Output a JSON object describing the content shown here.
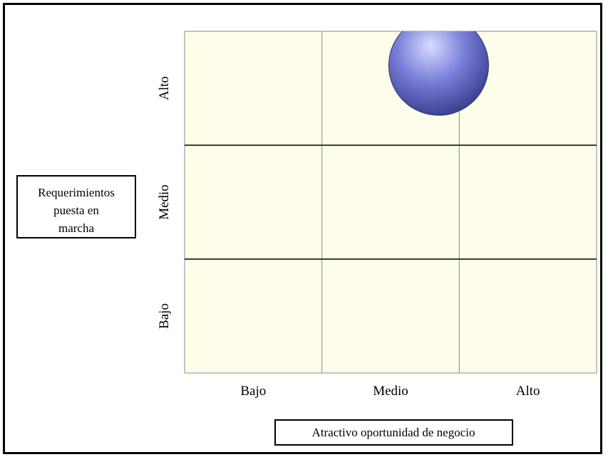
{
  "chart_data": {
    "type": "scatter",
    "x_categories": [
      "Bajo",
      "Medio",
      "Alto"
    ],
    "y_categories": [
      "Bajo",
      "Medio",
      "Alto"
    ],
    "xlabel": "Atractivo oportunidad de negocio",
    "ylabel": [
      "Requerimientos",
      "puesta en",
      "marcha"
    ],
    "grid": true,
    "colors": {
      "cell_fill": "#fdfdea",
      "grid_line": "#000000",
      "bubble_light": "#d8dcff",
      "bubble_mid": "#7a80d8",
      "bubble_dark": "#2c3080"
    },
    "points": [
      {
        "x": 2.35,
        "y": 3.2,
        "size": 1
      }
    ]
  }
}
